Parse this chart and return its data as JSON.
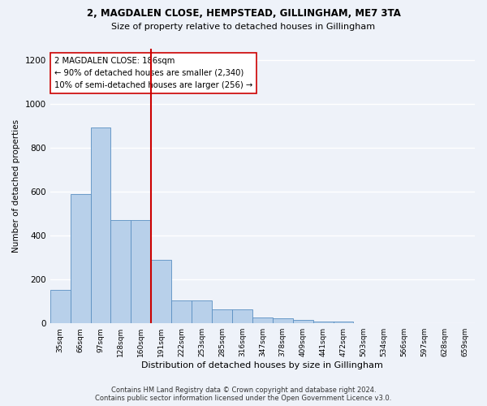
{
  "title1": "2, MAGDALEN CLOSE, HEMPSTEAD, GILLINGHAM, ME7 3TA",
  "title2": "Size of property relative to detached houses in Gillingham",
  "xlabel": "Distribution of detached houses by size in Gillingham",
  "ylabel": "Number of detached properties",
  "categories": [
    "35sqm",
    "66sqm",
    "97sqm",
    "128sqm",
    "160sqm",
    "191sqm",
    "222sqm",
    "253sqm",
    "285sqm",
    "316sqm",
    "347sqm",
    "378sqm",
    "409sqm",
    "441sqm",
    "472sqm",
    "503sqm",
    "534sqm",
    "566sqm",
    "597sqm",
    "628sqm",
    "659sqm"
  ],
  "values": [
    152,
    588,
    893,
    470,
    470,
    290,
    105,
    105,
    65,
    65,
    28,
    22,
    15,
    10,
    10,
    0,
    0,
    0,
    0,
    0,
    0
  ],
  "bar_color": "#b8d0ea",
  "bar_edge_color": "#5a8fc2",
  "vline_color": "#cc0000",
  "annotation_text": "2 MAGDALEN CLOSE: 186sqm\n← 90% of detached houses are smaller (2,340)\n10% of semi-detached houses are larger (256) →",
  "annotation_box_color": "#ffffff",
  "annotation_box_edge": "#cc0000",
  "bg_color": "#eef2f9",
  "grid_color": "#ffffff",
  "footer1": "Contains HM Land Registry data © Crown copyright and database right 2024.",
  "footer2": "Contains public sector information licensed under the Open Government Licence v3.0.",
  "ylim": [
    0,
    1250
  ],
  "yticks": [
    0,
    200,
    400,
    600,
    800,
    1000,
    1200
  ]
}
